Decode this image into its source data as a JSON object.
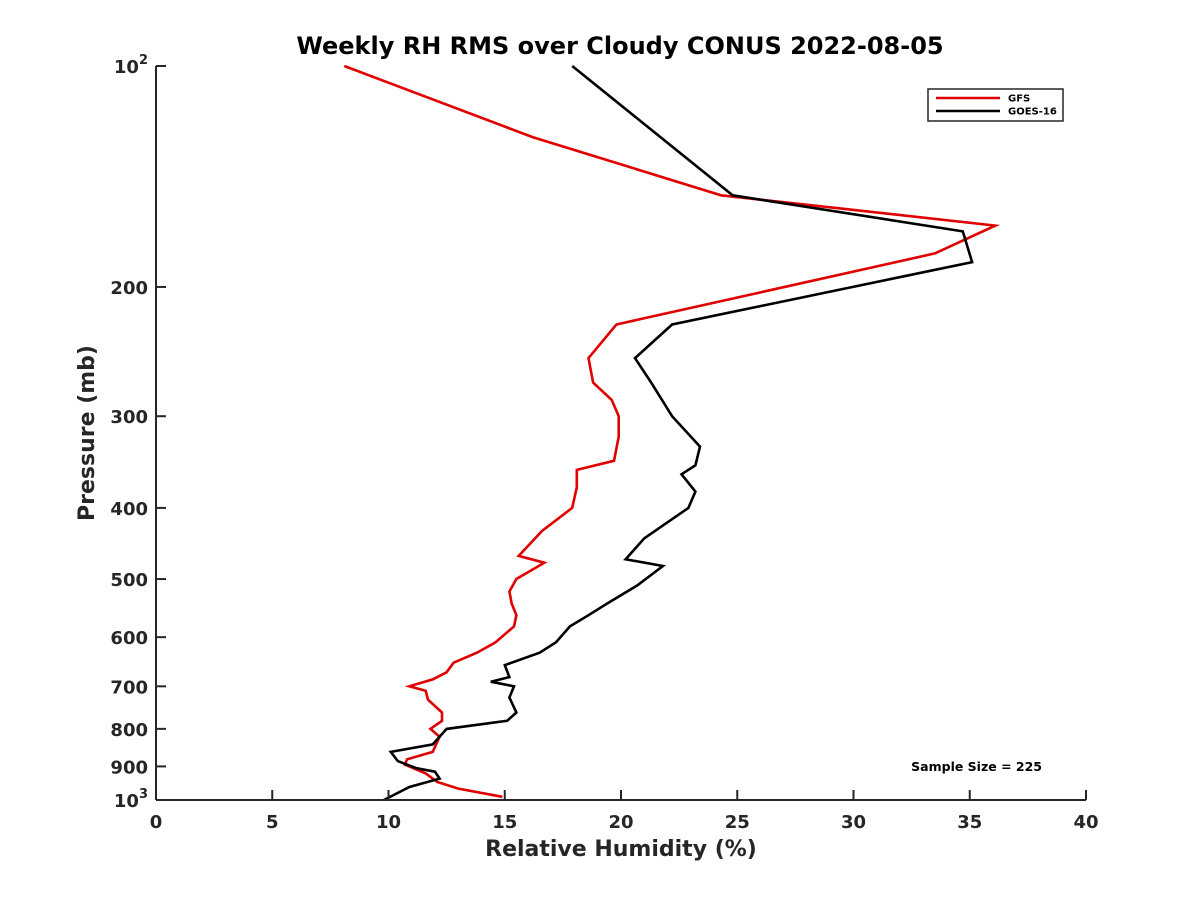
{
  "chart_data": {
    "type": "line",
    "title": "Weekly RH RMS over Cloudy CONUS 2022-08-05",
    "xlabel": "Relative Humidity (%)",
    "ylabel": "Pressure (mb)",
    "xlim": [
      0,
      40
    ],
    "ylim": [
      100,
      1000
    ],
    "y_scale": "log",
    "y_reversed": true,
    "x_ticks": [
      "0",
      "5",
      "10",
      "15",
      "20",
      "25",
      "30",
      "35",
      "40"
    ],
    "y_ticks": [
      {
        "value": 100,
        "base": "10",
        "exp": "2"
      },
      {
        "value": 200,
        "label": "200"
      },
      {
        "value": 300,
        "label": "300"
      },
      {
        "value": 400,
        "label": "400"
      },
      {
        "value": 500,
        "label": "500"
      },
      {
        "value": 600,
        "label": "600"
      },
      {
        "value": 700,
        "label": "700"
      },
      {
        "value": 800,
        "label": "800"
      },
      {
        "value": 900,
        "label": "900"
      },
      {
        "value": 1000,
        "base": "10",
        "exp": "3"
      }
    ],
    "grid": false,
    "legend_position": "top-right",
    "annotation": "Sample Size = 225",
    "series": [
      {
        "name": "GFS",
        "color": "#e00000",
        "points": [
          [
            8.1,
            100
          ],
          [
            16.2,
            125
          ],
          [
            24.3,
            150
          ],
          [
            36.1,
            165
          ],
          [
            33.5,
            180
          ],
          [
            19.8,
            225
          ],
          [
            18.6,
            250
          ],
          [
            18.8,
            270
          ],
          [
            19.6,
            285
          ],
          [
            19.9,
            300
          ],
          [
            19.9,
            320
          ],
          [
            19.7,
            345
          ],
          [
            18.1,
            355
          ],
          [
            18.1,
            375
          ],
          [
            17.9,
            400
          ],
          [
            16.6,
            430
          ],
          [
            15.6,
            465
          ],
          [
            16.7,
            475
          ],
          [
            15.5,
            500
          ],
          [
            15.2,
            520
          ],
          [
            15.3,
            540
          ],
          [
            15.5,
            560
          ],
          [
            15.4,
            580
          ],
          [
            14.6,
            610
          ],
          [
            13.8,
            630
          ],
          [
            12.8,
            650
          ],
          [
            12.5,
            670
          ],
          [
            11.9,
            685
          ],
          [
            10.9,
            700
          ],
          [
            11.6,
            710
          ],
          [
            11.7,
            730
          ],
          [
            12.3,
            760
          ],
          [
            12.3,
            780
          ],
          [
            11.8,
            800
          ],
          [
            12.2,
            820
          ],
          [
            11.9,
            860
          ],
          [
            10.8,
            880
          ],
          [
            10.7,
            895
          ],
          [
            11.6,
            920
          ],
          [
            12.1,
            945
          ],
          [
            13.0,
            965
          ],
          [
            14.9,
            990
          ]
        ]
      },
      {
        "name": "GOES-16",
        "color": "#000000",
        "points": [
          [
            17.9,
            100
          ],
          [
            24.8,
            150
          ],
          [
            34.7,
            168
          ],
          [
            35.1,
            185
          ],
          [
            22.2,
            225
          ],
          [
            20.6,
            250
          ],
          [
            21.3,
            270
          ],
          [
            22.2,
            300
          ],
          [
            23.4,
            330
          ],
          [
            23.2,
            350
          ],
          [
            22.6,
            360
          ],
          [
            23.2,
            380
          ],
          [
            22.9,
            400
          ],
          [
            21.0,
            440
          ],
          [
            20.2,
            470
          ],
          [
            21.8,
            480
          ],
          [
            20.7,
            510
          ],
          [
            19.4,
            540
          ],
          [
            18.6,
            560
          ],
          [
            17.8,
            580
          ],
          [
            17.2,
            610
          ],
          [
            16.5,
            630
          ],
          [
            15.0,
            655
          ],
          [
            15.2,
            680
          ],
          [
            14.4,
            690
          ],
          [
            15.4,
            700
          ],
          [
            15.2,
            725
          ],
          [
            15.5,
            760
          ],
          [
            15.1,
            780
          ],
          [
            12.5,
            800
          ],
          [
            11.9,
            840
          ],
          [
            10.1,
            860
          ],
          [
            10.4,
            885
          ],
          [
            11.2,
            905
          ],
          [
            12.0,
            915
          ],
          [
            12.2,
            935
          ],
          [
            10.9,
            960
          ],
          [
            9.8,
            1000
          ]
        ]
      }
    ]
  }
}
